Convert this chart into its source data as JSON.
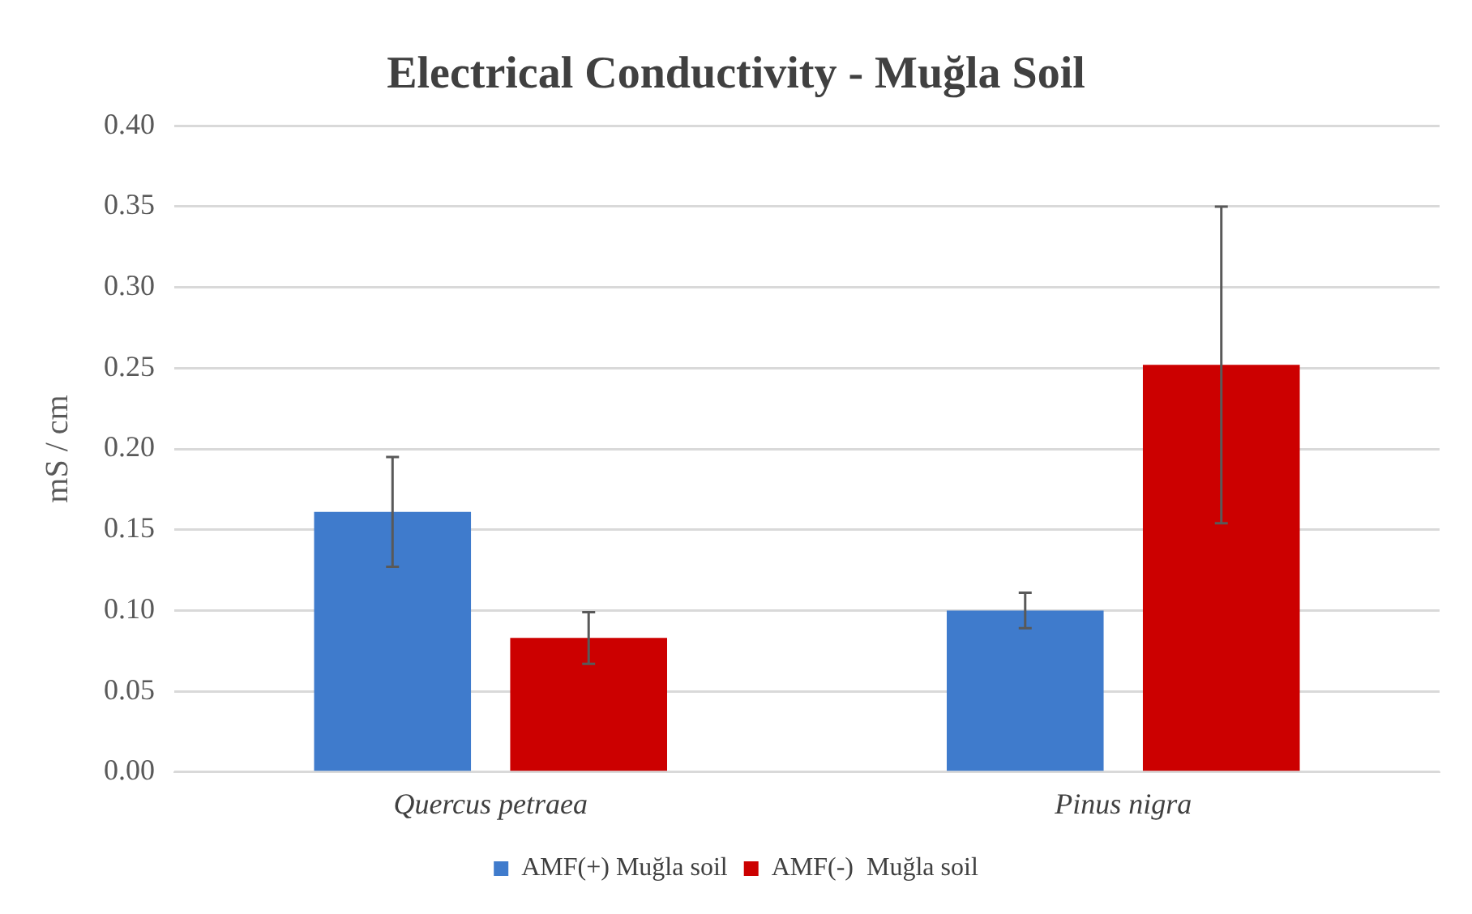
{
  "chart_data": {
    "type": "bar",
    "title": "Electrical Conductivity - Muğla Soil",
    "ylabel": "mS / cm",
    "categories": [
      "Quercus petraea",
      "Pinus nigra"
    ],
    "series": [
      {
        "name": "AMF(+) Muğla soil",
        "color": "#3f7bcc",
        "values": [
          0.161,
          0.1
        ],
        "errors": [
          0.034,
          0.011
        ]
      },
      {
        "name": "AMF(-)  Muğla soil",
        "color": "#cc0000",
        "values": [
          0.083,
          0.252
        ],
        "errors": [
          0.016,
          0.098
        ]
      }
    ],
    "ylim": [
      0,
      0.4
    ],
    "yticks": [
      {
        "value": 0,
        "label": "0.00"
      },
      {
        "value": 0.05,
        "label": "0.05"
      },
      {
        "value": 0.1,
        "label": "0.10"
      },
      {
        "value": 0.15,
        "label": "0.15"
      },
      {
        "value": 0.2,
        "label": "0.20"
      },
      {
        "value": 0.25,
        "label": "0.25"
      },
      {
        "value": 0.3,
        "label": "0.30"
      },
      {
        "value": 0.35,
        "label": "0.35"
      },
      {
        "value": 0.4,
        "label": "0.40"
      }
    ],
    "grid": "y",
    "legend": "bottom"
  }
}
